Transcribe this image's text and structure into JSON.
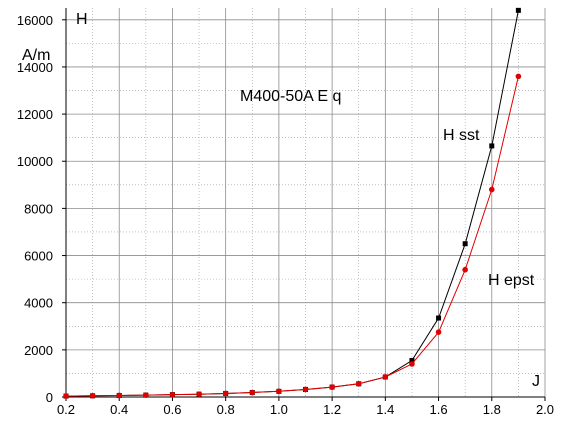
{
  "chart_data": {
    "type": "line",
    "title": "M400-50A  E q",
    "xlabel": "J",
    "ylabel": "H",
    "yunit": "A/m",
    "xlim": [
      0.2,
      2.0
    ],
    "ylim": [
      0,
      16500
    ],
    "x_ticks": [
      "0.2",
      "0.4",
      "0.6",
      "0.8",
      "1.0",
      "1.2",
      "1.4",
      "1.6",
      "1.8",
      "2.0"
    ],
    "y_ticks": [
      "0",
      "2000",
      "4000",
      "6000",
      "8000",
      "10000",
      "12000",
      "14000",
      "16000"
    ],
    "grid": true,
    "series": [
      {
        "name": "H sst",
        "color": "#000000",
        "marker": "square",
        "x": [
          0.2,
          0.3,
          0.4,
          0.5,
          0.6,
          0.7,
          0.8,
          0.9,
          1.0,
          1.1,
          1.2,
          1.3,
          1.4,
          1.5,
          1.6,
          1.7,
          1.8,
          1.9
        ],
        "y": [
          40,
          50,
          65,
          80,
          100,
          120,
          150,
          190,
          240,
          320,
          420,
          560,
          850,
          1550,
          3350,
          6500,
          10650,
          16400
        ]
      },
      {
        "name": "H epst",
        "color": "#e00000",
        "marker": "circle",
        "x": [
          0.2,
          0.3,
          0.4,
          0.5,
          0.6,
          0.7,
          0.8,
          0.9,
          1.0,
          1.1,
          1.2,
          1.3,
          1.4,
          1.5,
          1.6,
          1.7,
          1.8,
          1.9
        ],
        "y": [
          40,
          50,
          65,
          80,
          100,
          120,
          150,
          190,
          240,
          320,
          420,
          560,
          850,
          1400,
          2750,
          5400,
          8800,
          13600
        ]
      }
    ]
  }
}
